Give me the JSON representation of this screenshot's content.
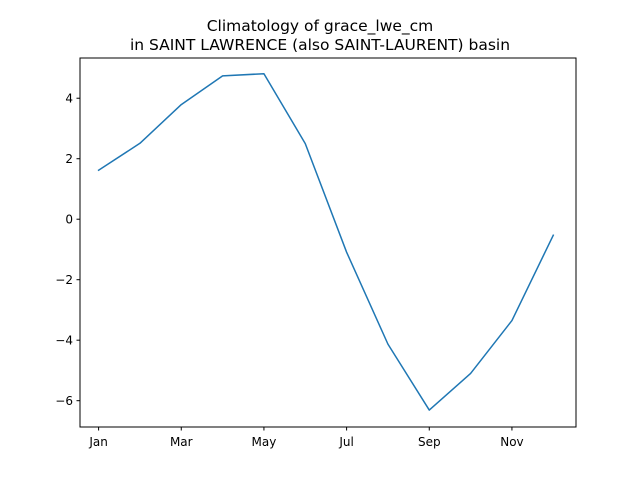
{
  "chart_data": {
    "type": "line",
    "title": "Climatology of grace_lwe_cm",
    "subtitle": "in SAINT LAWRENCE (also SAINT-LAURENT) basin",
    "xlabel": "",
    "ylabel": "",
    "x": [
      1,
      2,
      3,
      4,
      5,
      6,
      7,
      8,
      9,
      10,
      11,
      12
    ],
    "xticks": [
      1,
      3,
      5,
      7,
      9,
      11
    ],
    "xtick_labels": [
      "Jan",
      "Mar",
      "May",
      "Jul",
      "Sep",
      "Nov"
    ],
    "yticks": [
      -6,
      -4,
      -2,
      0,
      2,
      4
    ],
    "ytick_labels": [
      "−6",
      "−4",
      "−2",
      "0",
      "2",
      "4"
    ],
    "xlim": [
      0.55,
      12.55
    ],
    "ylim": [
      -6.87,
      5.33
    ],
    "grid": false,
    "series": [
      {
        "color": "#1f77b4",
        "values": [
          1.62,
          2.51,
          3.79,
          4.74,
          4.81,
          2.5,
          -1.09,
          -4.13,
          -6.31,
          -5.1,
          -3.35,
          -0.53
        ]
      }
    ]
  }
}
